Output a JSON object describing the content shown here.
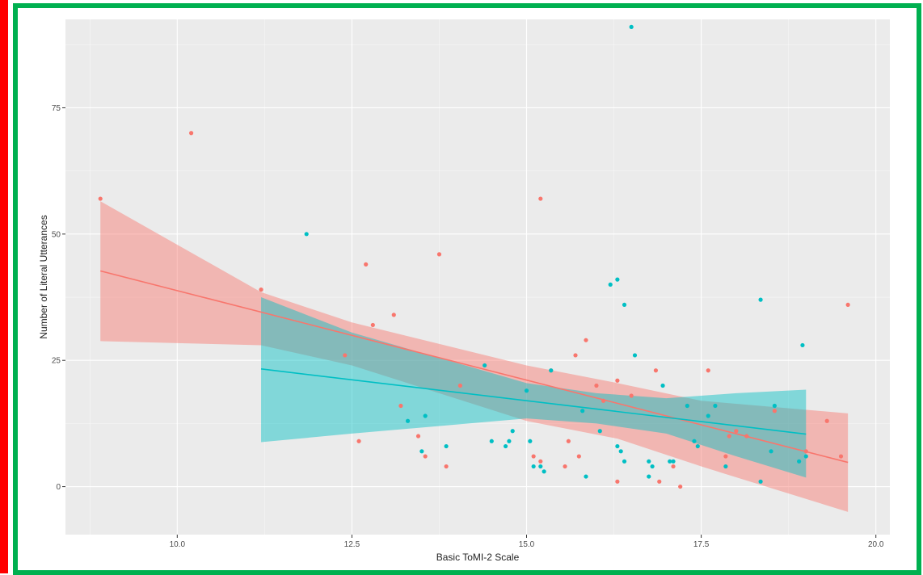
{
  "frame": {
    "left_bar_color": "#ff0000",
    "border_color": "#00b050"
  },
  "chart_data": {
    "type": "scatter",
    "title": "",
    "xlabel": "Basic ToMI-2 Scale",
    "ylabel": "Number of Literal Utterances",
    "xlim": [
      8.4,
      20.2
    ],
    "ylim": [
      -9.5,
      92.5
    ],
    "x_ticks": [
      10.0,
      12.5,
      15.0,
      17.5,
      20.0
    ],
    "x_tick_labels": [
      "10.0",
      "12.5",
      "15.0",
      "17.5",
      "20.0"
    ],
    "y_ticks": [
      0,
      25,
      50,
      75
    ],
    "y_tick_labels": [
      "0",
      "25",
      "50",
      "75"
    ],
    "grid": true,
    "legend": "none",
    "panel_background": "#ebebeb",
    "series": [
      {
        "color": "#f8766d",
        "band_color": "#f8766d",
        "fit_line": {
          "x": [
            8.9,
            19.6
          ],
          "y": [
            42.7,
            4.8
          ]
        },
        "confidence_band": {
          "x": [
            8.9,
            11.2,
            12.5,
            15.0,
            16.3,
            17.5,
            19.6
          ],
          "upper": [
            56.5,
            38.5,
            32.5,
            24.0,
            20.5,
            17.0,
            14.5
          ],
          "lower": [
            28.8,
            28.0,
            24.0,
            13.0,
            9.5,
            4.0,
            -5.0
          ]
        },
        "points": [
          [
            8.9,
            57
          ],
          [
            10.2,
            70
          ],
          [
            11.2,
            39
          ],
          [
            12.4,
            26
          ],
          [
            12.6,
            9
          ],
          [
            12.7,
            44
          ],
          [
            12.8,
            32
          ],
          [
            13.1,
            34
          ],
          [
            13.2,
            16
          ],
          [
            13.45,
            10
          ],
          [
            13.55,
            6
          ],
          [
            13.75,
            46
          ],
          [
            13.85,
            4
          ],
          [
            14.05,
            20
          ],
          [
            15.1,
            6
          ],
          [
            15.2,
            57
          ],
          [
            15.2,
            5
          ],
          [
            15.35,
            23
          ],
          [
            15.55,
            4
          ],
          [
            15.6,
            9
          ],
          [
            15.7,
            26
          ],
          [
            15.75,
            6
          ],
          [
            15.85,
            29
          ],
          [
            16.0,
            20
          ],
          [
            16.1,
            17
          ],
          [
            16.3,
            21
          ],
          [
            16.3,
            1
          ],
          [
            16.5,
            18
          ],
          [
            16.85,
            23
          ],
          [
            16.9,
            1
          ],
          [
            17.1,
            4
          ],
          [
            17.2,
            0
          ],
          [
            17.3,
            16
          ],
          [
            17.6,
            23
          ],
          [
            17.85,
            6
          ],
          [
            17.9,
            10
          ],
          [
            18.0,
            11
          ],
          [
            18.15,
            10
          ],
          [
            18.55,
            15
          ],
          [
            19.0,
            7
          ],
          [
            19.3,
            13
          ],
          [
            19.5,
            6
          ],
          [
            19.6,
            36
          ]
        ]
      },
      {
        "color": "#00bfc4",
        "band_color": "#00bfc4",
        "fit_line": {
          "x": [
            11.2,
            19.0
          ],
          "y": [
            23.3,
            10.4
          ]
        },
        "confidence_band": {
          "x": [
            11.2,
            12.5,
            15.0,
            16.0,
            17.0,
            18.0,
            19.0
          ],
          "upper": [
            37.5,
            30.5,
            20.5,
            18.5,
            17.5,
            18.5,
            19.2
          ],
          "lower": [
            8.8,
            10.5,
            13.5,
            12.5,
            10.5,
            6.0,
            1.8
          ]
        },
        "points": [
          [
            11.85,
            50
          ],
          [
            13.3,
            13
          ],
          [
            13.5,
            7
          ],
          [
            13.55,
            14
          ],
          [
            13.85,
            8
          ],
          [
            14.4,
            24
          ],
          [
            14.5,
            9
          ],
          [
            14.7,
            8
          ],
          [
            14.75,
            9
          ],
          [
            14.8,
            11
          ],
          [
            15.0,
            19
          ],
          [
            15.05,
            9
          ],
          [
            15.1,
            4
          ],
          [
            15.2,
            4
          ],
          [
            15.25,
            3
          ],
          [
            15.35,
            23
          ],
          [
            15.8,
            15
          ],
          [
            15.85,
            2
          ],
          [
            16.05,
            11
          ],
          [
            16.2,
            40
          ],
          [
            16.3,
            41
          ],
          [
            16.3,
            8
          ],
          [
            16.35,
            7
          ],
          [
            16.4,
            36
          ],
          [
            16.4,
            5
          ],
          [
            16.5,
            91
          ],
          [
            16.55,
            26
          ],
          [
            16.75,
            5
          ],
          [
            16.8,
            4
          ],
          [
            16.75,
            2
          ],
          [
            16.95,
            20
          ],
          [
            17.05,
            5
          ],
          [
            17.1,
            5
          ],
          [
            17.3,
            16
          ],
          [
            17.4,
            9
          ],
          [
            17.45,
            8
          ],
          [
            17.6,
            14
          ],
          [
            17.7,
            16
          ],
          [
            17.85,
            4
          ],
          [
            18.35,
            37
          ],
          [
            18.35,
            1
          ],
          [
            18.5,
            7
          ],
          [
            18.55,
            16
          ],
          [
            18.9,
            5
          ],
          [
            18.95,
            28
          ],
          [
            19.0,
            6
          ]
        ]
      }
    ]
  }
}
